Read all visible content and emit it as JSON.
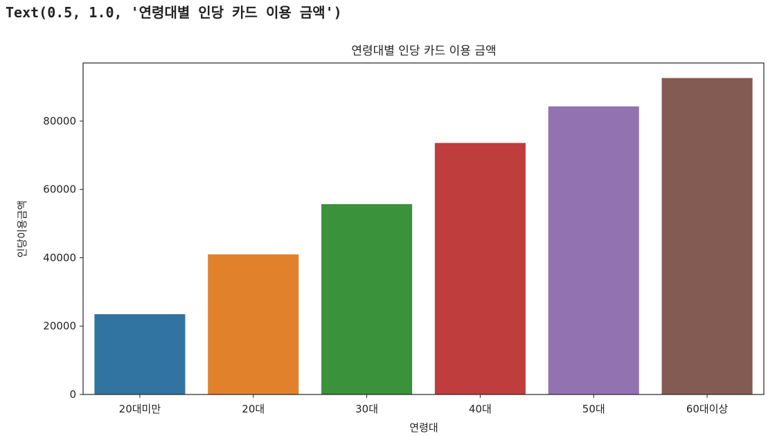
{
  "output_repr": "Text(0.5, 1.0, '연령대별 인당 카드 이용 금액')",
  "chart_data": {
    "type": "bar",
    "title": "연령대별 인당 카드 이용 금액",
    "xlabel": "연령대",
    "ylabel": "인당이용금액",
    "categories": [
      "20대미만",
      "20대",
      "30대",
      "40대",
      "50대",
      "60대이상"
    ],
    "values": [
      23500,
      41000,
      55700,
      73600,
      84300,
      92600
    ],
    "colors": [
      "#3274a1",
      "#e1812c",
      "#3a923a",
      "#c03d3e",
      "#9372b2",
      "#845b53"
    ],
    "ylim": [
      0,
      97000
    ],
    "yticks": [
      0,
      20000,
      40000,
      60000,
      80000
    ],
    "ytick_labels": [
      "0",
      "20000",
      "40000",
      "60000",
      "80000"
    ],
    "grid": false,
    "legend": "none"
  }
}
